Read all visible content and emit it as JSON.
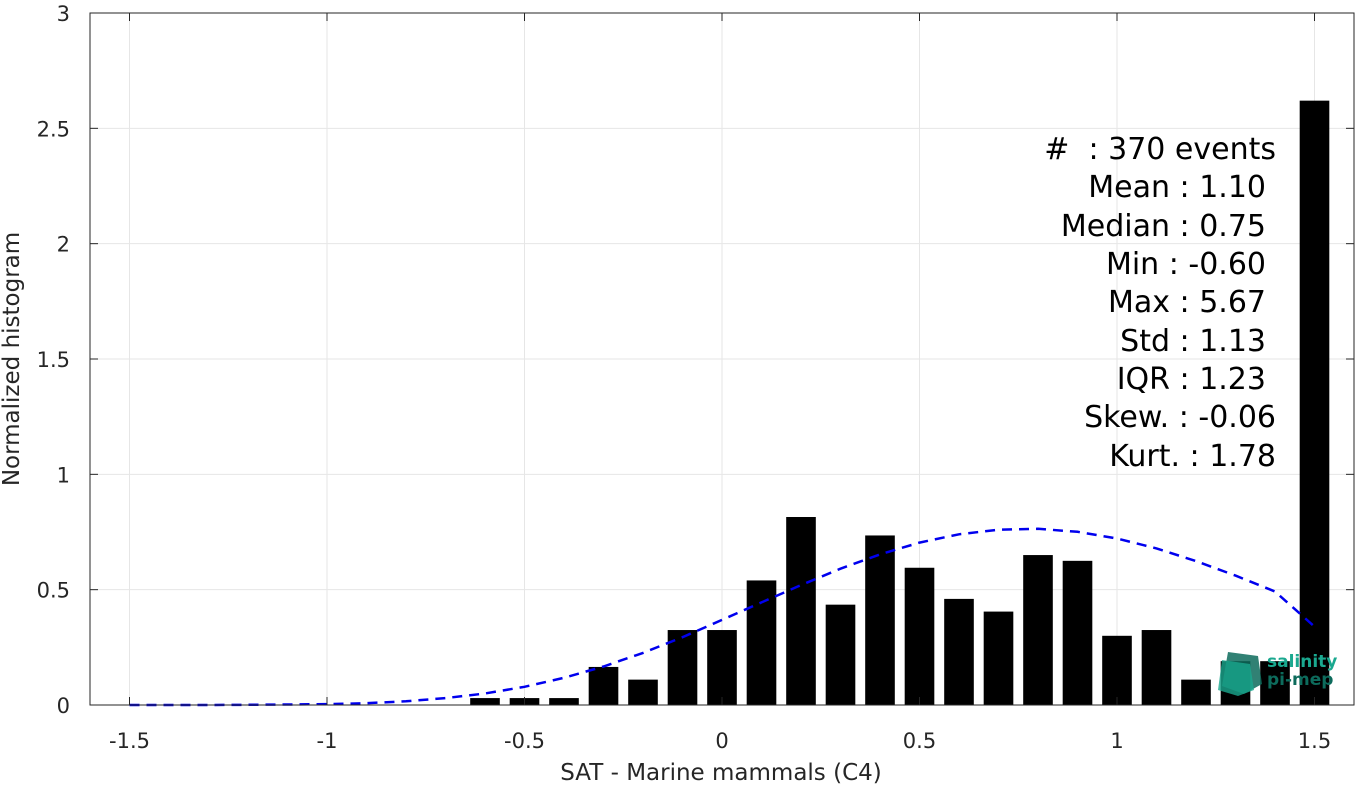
{
  "chart_data": {
    "type": "bar",
    "xlabel": "SAT - Marine mammals (C4)",
    "ylabel": "Normalized histogram",
    "xlim": [
      -1.6,
      1.6
    ],
    "ylim": [
      0,
      3
    ],
    "xticks": [
      -1.5,
      -1,
      -0.5,
      0,
      0.5,
      1,
      1.5
    ],
    "xtick_labels": [
      "-1.5",
      "-1",
      "-0.5",
      "0",
      "0.5",
      "1",
      "1.5"
    ],
    "yticks": [
      0,
      0.5,
      1,
      1.5,
      2,
      2.5,
      3
    ],
    "ytick_labels": [
      "0",
      "0.5",
      "1",
      "1.5",
      "2",
      "2.5",
      "3"
    ],
    "grid": true,
    "bar_color": "#000000",
    "bar_width": 0.075,
    "bars": {
      "x": [
        -0.6,
        -0.5,
        -0.4,
        -0.3,
        -0.2,
        -0.1,
        0.0,
        0.1,
        0.2,
        0.3,
        0.4,
        0.5,
        0.6,
        0.7,
        0.8,
        0.9,
        1.0,
        1.1,
        1.2,
        1.3,
        1.4,
        1.5
      ],
      "values": [
        0.03,
        0.03,
        0.03,
        0.165,
        0.11,
        0.325,
        0.325,
        0.54,
        0.815,
        0.435,
        0.735,
        0.595,
        0.46,
        0.405,
        0.65,
        0.625,
        0.3,
        0.325,
        0.11,
        0.19,
        0.19,
        2.62
      ]
    },
    "fit_curve": {
      "style": "dashed",
      "color": "#0000ee",
      "x": [
        -1.5,
        -1.4,
        -1.3,
        -1.2,
        -1.1,
        -1.0,
        -0.9,
        -0.8,
        -0.7,
        -0.6,
        -0.5,
        -0.4,
        -0.3,
        -0.2,
        -0.1,
        0.0,
        0.1,
        0.2,
        0.3,
        0.4,
        0.5,
        0.6,
        0.7,
        0.8,
        0.9,
        1.0,
        1.1,
        1.2,
        1.3,
        1.4,
        1.5
      ],
      "y": [
        0.0,
        0.0,
        0.0,
        0.001,
        0.002,
        0.004,
        0.008,
        0.016,
        0.03,
        0.05,
        0.079,
        0.118,
        0.167,
        0.226,
        0.294,
        0.369,
        0.445,
        0.52,
        0.591,
        0.653,
        0.704,
        0.74,
        0.76,
        0.764,
        0.751,
        0.722,
        0.679,
        0.624,
        0.561,
        0.492,
        0.34
      ]
    },
    "stats": {
      "events": "#  : 370 events",
      "mean": "Mean : 1.10",
      "median": "Median : 0.75",
      "min": "Min : -0.60",
      "max": "Max : 5.67",
      "std": "Std : 1.13",
      "iqr": "IQR : 1.23",
      "skew": "Skew. : -0.06",
      "kurt": "Kurt. : 1.78"
    },
    "logo": {
      "line1": "salinity",
      "line2": "pi-mep",
      "color": "#1aa88f",
      "color_dark": "#0d6b5c"
    }
  }
}
